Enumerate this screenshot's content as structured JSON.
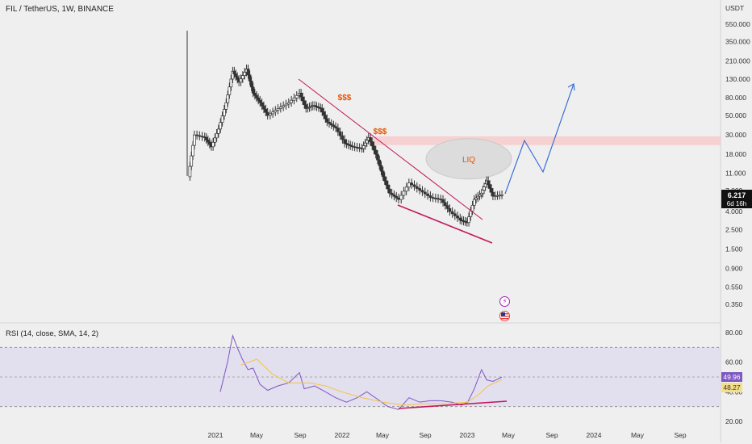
{
  "header": {
    "title": "FIL / TetherUS, 1W, BINANCE"
  },
  "price_axis": {
    "unit": "USDT",
    "ticks": [
      "550.000",
      "350.000",
      "210.000",
      "130.000",
      "80.000",
      "50.000",
      "30.000",
      "18.000",
      "11.000",
      "7.000",
      "4.000",
      "2.500",
      "1.500",
      "0.900",
      "0.550",
      "0.350"
    ],
    "last_price": "6.217",
    "countdown": "6d 16h"
  },
  "rsi_panel": {
    "label": "RSI (14, close, SMA, 14, 2)",
    "ticks": [
      "80.00",
      "60.00",
      "40.00",
      "20.00"
    ],
    "rsi_value": "49.96",
    "sma_value": "48.27"
  },
  "time_axis": {
    "ticks": [
      "2021",
      "May",
      "Sep",
      "2022",
      "May",
      "Sep",
      "2023",
      "May",
      "Sep",
      "2024",
      "May",
      "Sep"
    ]
  },
  "annotations": {
    "dollar1": "$$$",
    "dollar2": "$$$",
    "liq": "LIQ"
  },
  "colors": {
    "up": "#222222",
    "down": "#222222",
    "trend": "#c2185b",
    "projection": "#3b6fd8",
    "rsi": "#7e57c2",
    "sma": "#f5c542",
    "zone": "#f7c9c9",
    "rsi_band": "#ddd9ef"
  },
  "chart_data": [
    {
      "type": "line",
      "title": "FIL / TetherUS, 1W, BINANCE",
      "ylabel": "USDT",
      "scale": "log",
      "series": [
        {
          "values": [
            [
              "2020-10-15",
              10
            ],
            [
              "2020-11-01",
              30
            ],
            [
              "2020-12-01",
              28
            ],
            [
              "2020-12-20",
              22
            ],
            [
              "2021-01-10",
              35
            ],
            [
              "2021-02-01",
              70
            ],
            [
              "2021-02-20",
              160
            ],
            [
              "2021-03-10",
              120
            ],
            [
              "2021-04-01",
              170
            ],
            [
              "2021-04-20",
              90
            ],
            [
              "2021-05-10",
              70
            ],
            [
              "2021-06-01",
              50
            ],
            [
              "2021-07-01",
              60
            ],
            [
              "2021-08-01",
              70
            ],
            [
              "2021-09-01",
              90
            ],
            [
              "2021-09-20",
              60
            ],
            [
              "2021-10-10",
              65
            ],
            [
              "2021-11-01",
              60
            ],
            [
              "2021-11-20",
              42
            ],
            [
              "2021-12-15",
              36
            ],
            [
              "2022-01-10",
              24
            ],
            [
              "2022-02-01",
              22
            ],
            [
              "2022-03-01",
              21
            ],
            [
              "2022-03-20",
              28
            ],
            [
              "2022-04-10",
              18
            ],
            [
              "2022-05-01",
              10
            ],
            [
              "2022-05-20",
              6.5
            ],
            [
              "2022-06-15",
              5.5
            ],
            [
              "2022-07-15",
              8.5
            ],
            [
              "2022-08-15",
              7.0
            ],
            [
              "2022-09-15",
              5.8
            ],
            [
              "2022-10-15",
              5.5
            ],
            [
              "2022-11-10",
              4.0
            ],
            [
              "2022-12-10",
              3.2
            ],
            [
              "2022-12-30",
              3.0
            ],
            [
              "2023-01-20",
              5.5
            ],
            [
              "2023-02-10",
              6.5
            ],
            [
              "2023-02-25",
              9.0
            ],
            [
              "2023-03-15",
              6.0
            ],
            [
              "2023-04-10",
              6.217
            ]
          ]
        }
      ],
      "annotations": [
        "$$$",
        "$$$",
        "LIQ"
      ]
    },
    {
      "type": "line",
      "title": "RSI (14, close, SMA, 14, 2)",
      "ylim": [
        20,
        80
      ],
      "series": [
        {
          "name": "RSI",
          "values": [
            [
              "2021-01-15",
              40
            ],
            [
              "2021-02-05",
              60
            ],
            [
              "2021-02-20",
              78
            ],
            [
              "2021-03-05",
              70
            ],
            [
              "2021-03-20",
              62
            ],
            [
              "2021-04-05",
              55
            ],
            [
              "2021-04-20",
              56
            ],
            [
              "2021-05-10",
              45
            ],
            [
              "2021-06-01",
              41
            ],
            [
              "2021-07-01",
              44
            ],
            [
              "2021-08-01",
              46
            ],
            [
              "2021-09-01",
              53
            ],
            [
              "2021-09-15",
              42
            ],
            [
              "2021-10-15",
              44
            ],
            [
              "2021-11-15",
              40
            ],
            [
              "2021-12-15",
              36
            ],
            [
              "2022-01-15",
              33
            ],
            [
              "2022-02-15",
              36
            ],
            [
              "2022-03-15",
              40
            ],
            [
              "2022-04-15",
              35
            ],
            [
              "2022-05-15",
              30
            ],
            [
              "2022-06-15",
              28
            ],
            [
              "2022-07-15",
              36
            ],
            [
              "2022-08-15",
              33
            ],
            [
              "2022-09-15",
              34
            ],
            [
              "2022-10-15",
              34
            ],
            [
              "2022-11-15",
              33
            ],
            [
              "2022-12-15",
              31
            ],
            [
              "2023-01-01",
              33
            ],
            [
              "2023-01-20",
              42
            ],
            [
              "2023-02-10",
              55
            ],
            [
              "2023-02-25",
              48
            ],
            [
              "2023-03-15",
              47
            ],
            [
              "2023-04-10",
              49.96
            ]
          ]
        },
        {
          "name": "SMA",
          "values": [
            [
              "2021-03-15",
              58
            ],
            [
              "2021-05-01",
              62
            ],
            [
              "2021-06-15",
              52
            ],
            [
              "2021-08-01",
              46
            ],
            [
              "2021-10-01",
              46
            ],
            [
              "2021-11-15",
              44
            ],
            [
              "2022-01-01",
              40
            ],
            [
              "2022-03-01",
              36
            ],
            [
              "2022-05-01",
              33
            ],
            [
              "2022-07-01",
              31
            ],
            [
              "2022-09-01",
              32
            ],
            [
              "2022-11-01",
              32
            ],
            [
              "2023-01-01",
              33
            ],
            [
              "2023-02-01",
              38
            ],
            [
              "2023-03-01",
              44
            ],
            [
              "2023-04-10",
              48.27
            ]
          ]
        }
      ]
    }
  ]
}
